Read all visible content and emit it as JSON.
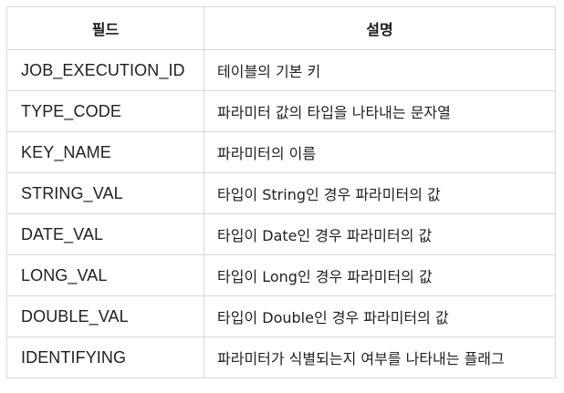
{
  "table": {
    "headers": [
      "필드",
      "설명"
    ],
    "rows": [
      {
        "field": "JOB_EXECUTION_ID",
        "description": "테이블의 기본 키"
      },
      {
        "field": "TYPE_CODE",
        "description": "파라미터 값의 타입을 나타내는 문자열"
      },
      {
        "field": "KEY_NAME",
        "description": "파라미터의 이름"
      },
      {
        "field": "STRING_VAL",
        "description": "타입이 String인 경우 파라미터의 값"
      },
      {
        "field": "DATE_VAL",
        "description": "타입이 Date인 경우 파라미터의 값"
      },
      {
        "field": "LONG_VAL",
        "description": "타입이 Long인 경우 파라미터의 값"
      },
      {
        "field": "DOUBLE_VAL",
        "description": "타입이 Double인 경우 파라미터의 값"
      },
      {
        "field": "IDENTIFYING",
        "description": "파라미터가 식별되는지 여부를 나타내는 플래그"
      }
    ]
  }
}
